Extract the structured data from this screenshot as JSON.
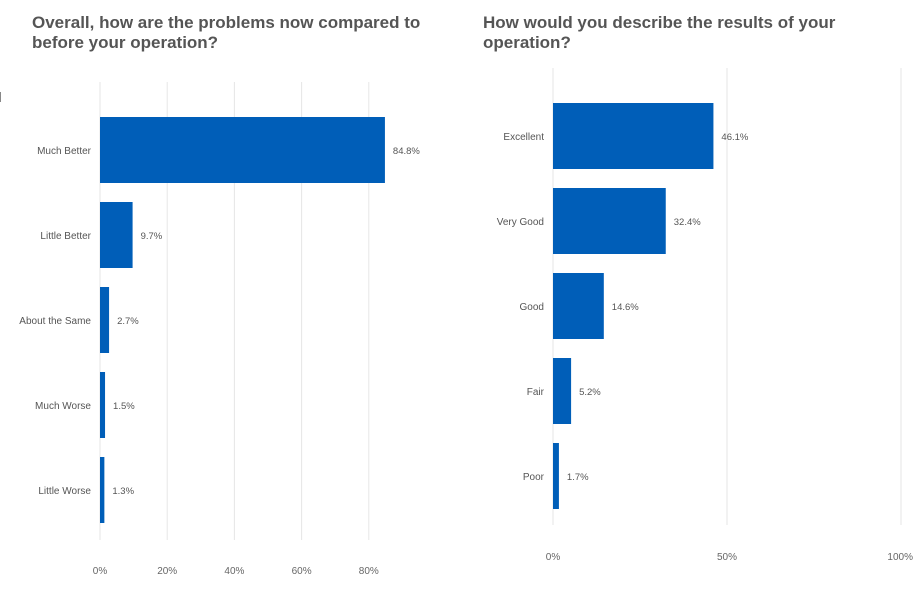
{
  "chart_data": [
    {
      "type": "bar",
      "orientation": "horizontal",
      "title": "Overall, how are the problems now compared to before your operation?",
      "categories": [
        "Much Better",
        "Little Better",
        "About the Same",
        "Much Worse",
        "Little Worse"
      ],
      "values": [
        84.8,
        9.7,
        2.7,
        1.5,
        1.3
      ],
      "value_labels": [
        "84.8%",
        "9.7%",
        "2.7%",
        "1.5%",
        "1.3%"
      ],
      "xlim": [
        0,
        100
      ],
      "xticks": [
        0,
        20,
        40,
        60,
        80
      ],
      "xtick_labels": [
        "0%",
        "20%",
        "40%",
        "60%",
        "80%"
      ],
      "grid": true,
      "bar_color": "#005EB8"
    },
    {
      "type": "bar",
      "orientation": "horizontal",
      "title": "How would you describe the results of your operation?",
      "categories": [
        "Excellent",
        "Very Good",
        "Good",
        "Fair",
        "Poor"
      ],
      "values": [
        46.1,
        32.4,
        14.6,
        5.2,
        1.7
      ],
      "value_labels": [
        "46.1%",
        "32.4%",
        "14.6%",
        "5.2%",
        "1.7%"
      ],
      "xlim": [
        0,
        100
      ],
      "xticks": [
        0,
        50,
        100
      ],
      "xtick_labels": [
        "0%",
        "50%",
        "100%"
      ],
      "grid": true,
      "bar_color": "#005EB8"
    }
  ]
}
